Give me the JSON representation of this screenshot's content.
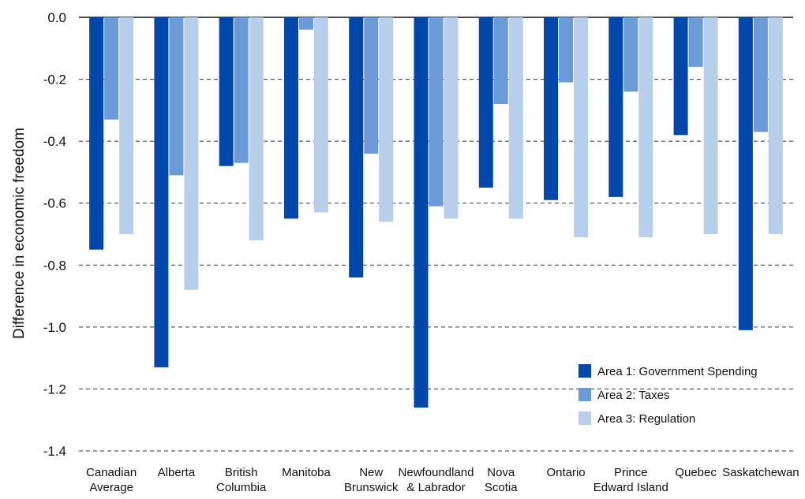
{
  "chart_data": {
    "type": "bar",
    "title": "",
    "xlabel": "",
    "ylabel": "Difference in economic freedom",
    "ylim": [
      -1.4,
      0.0
    ],
    "yticks": [
      "0.0",
      "-0.2",
      "-0.4",
      "-0.6",
      "-0.8",
      "-1.0",
      "-1.2",
      "-1.4"
    ],
    "ytick_values": [
      0.0,
      -0.2,
      -0.4,
      -0.6,
      -0.8,
      -1.0,
      -1.2,
      -1.4
    ],
    "grid": "horizontal dashed",
    "legend_position": "bottom-right",
    "categories": [
      [
        "Canadian",
        "Average"
      ],
      [
        "Alberta"
      ],
      [
        "British",
        "Columbia"
      ],
      [
        "Manitoba"
      ],
      [
        "New",
        "Brunswick"
      ],
      [
        "Newfoundland",
        "& Labrador"
      ],
      [
        "Nova",
        "Scotia"
      ],
      [
        "Ontario"
      ],
      [
        "Prince",
        "Edward Island"
      ],
      [
        "Quebec"
      ],
      [
        "Saskatchewan"
      ]
    ],
    "series": [
      {
        "name": "Area 1: Government Spending",
        "color": "#0047AB",
        "values": [
          -0.75,
          -1.13,
          -0.48,
          -0.65,
          -0.84,
          -1.26,
          -0.55,
          -0.59,
          -0.58,
          -0.38,
          -1.01
        ]
      },
      {
        "name": "Area 2: Taxes",
        "color": "#6A9BD6",
        "values": [
          -0.33,
          -0.51,
          -0.47,
          -0.04,
          -0.44,
          -0.61,
          -0.28,
          -0.21,
          -0.24,
          -0.16,
          -0.37
        ]
      },
      {
        "name": "Area 3: Regulation",
        "color": "#B8CFEC",
        "values": [
          -0.7,
          -0.88,
          -0.72,
          -0.63,
          -0.66,
          -0.65,
          -0.65,
          -0.71,
          -0.71,
          -0.7,
          -0.7
        ]
      }
    ]
  }
}
